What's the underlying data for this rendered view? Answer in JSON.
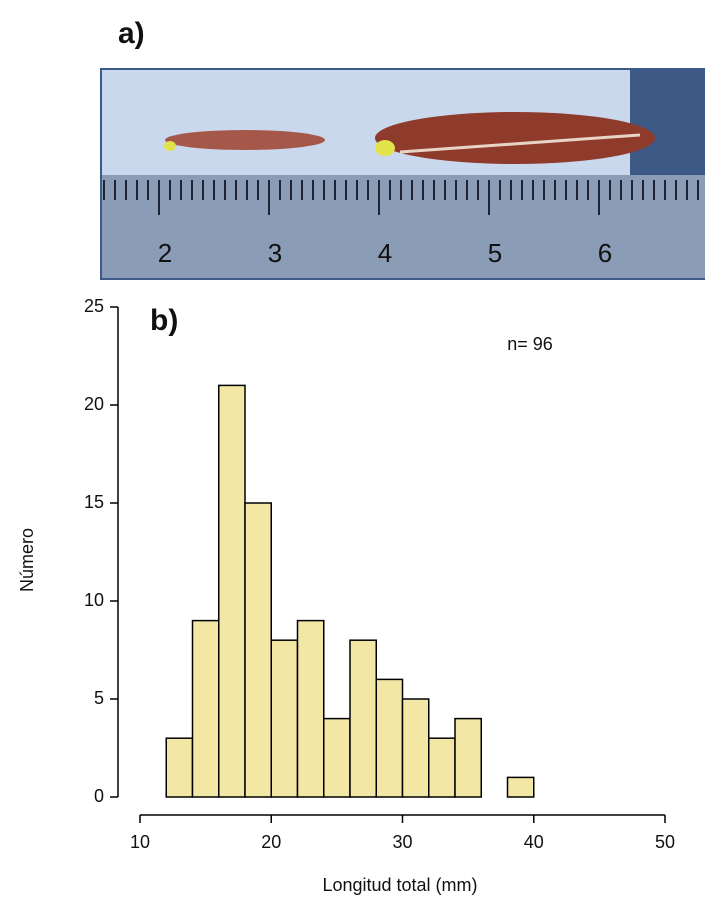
{
  "photo": {
    "label": "a)",
    "ruler_labels": [
      "2",
      "3",
      "4",
      "5",
      "6"
    ]
  },
  "chart_data": {
    "type": "histogram",
    "panel_label": "b)",
    "annotation": "n= 96",
    "x_label": "Longitud total (mm)",
    "y_label": "Número",
    "bins": [
      10,
      12,
      14,
      16,
      18,
      20,
      22,
      24,
      26,
      28,
      30,
      32,
      34,
      36,
      38,
      40
    ],
    "values": [
      0,
      3,
      9,
      21,
      15,
      8,
      9,
      4,
      8,
      6,
      5,
      3,
      4,
      0,
      1
    ],
    "color": "#f3e7a6",
    "xlim": [
      10,
      50
    ],
    "xticks": [
      10,
      20,
      30,
      40,
      50
    ],
    "ylim": [
      0,
      25
    ],
    "yticks": [
      0,
      5,
      10,
      15,
      20,
      25
    ]
  }
}
